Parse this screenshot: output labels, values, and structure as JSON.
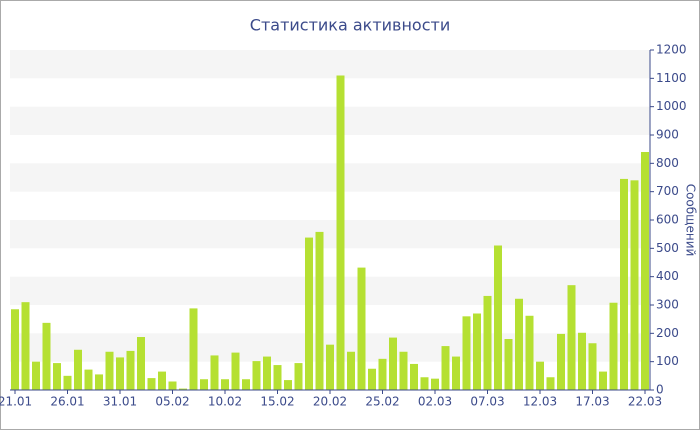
{
  "chart_data": {
    "type": "bar",
    "title": "Статистика активности",
    "y_label": "Сообщений",
    "categories": [
      "21.01",
      null,
      null,
      null,
      null,
      "26.01",
      null,
      null,
      null,
      null,
      "31.01",
      null,
      null,
      null,
      null,
      "05.02",
      null,
      null,
      null,
      null,
      "10.02",
      null,
      null,
      null,
      null,
      "15.02",
      null,
      null,
      null,
      null,
      "20.02",
      null,
      null,
      null,
      null,
      "25.02",
      null,
      null,
      null,
      null,
      "02.03",
      null,
      null,
      null,
      null,
      "07.03",
      null,
      null,
      null,
      null,
      "12.03",
      null,
      null,
      null,
      null,
      "17.03",
      null,
      null,
      null,
      null,
      "22.03"
    ],
    "values": [
      285,
      310,
      100,
      237,
      95,
      50,
      142,
      72,
      55,
      135,
      115,
      138,
      187,
      42,
      65,
      30,
      5,
      288,
      38,
      122,
      38,
      132,
      38,
      102,
      118,
      88,
      35,
      95,
      538,
      558,
      160,
      1110,
      135,
      432,
      75,
      110,
      185,
      135,
      92,
      45,
      40,
      155,
      118,
      260,
      270,
      332,
      510,
      180,
      322,
      262,
      100,
      45,
      198,
      370,
      202,
      165,
      65,
      308,
      745,
      740,
      840
    ],
    "color": "#b5e032",
    "ylim": [
      0,
      1200
    ],
    "yticks": [
      0,
      100,
      200,
      300,
      400,
      500,
      600,
      700,
      800,
      900,
      1000,
      1100,
      1200
    ],
    "grid": "bands",
    "y_axis_side": "right"
  }
}
